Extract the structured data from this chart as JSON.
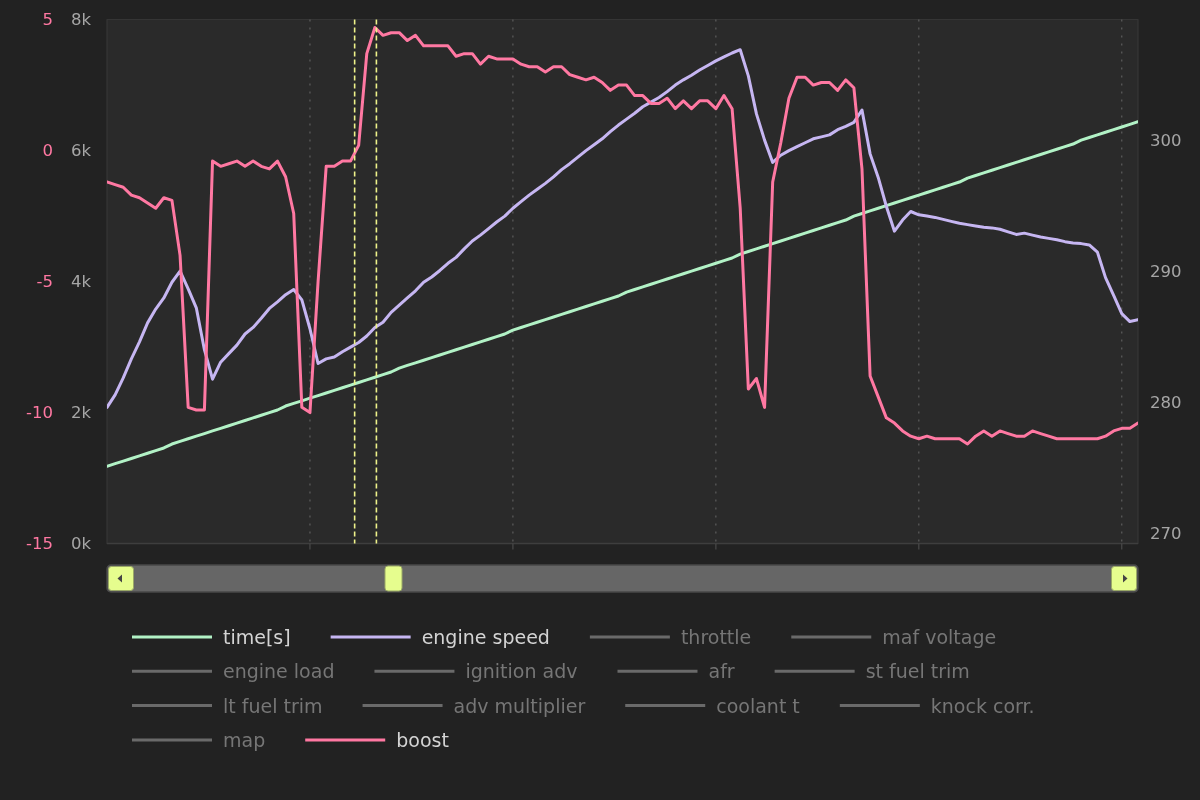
{
  "chart_data": {
    "type": "line",
    "categories": [
      null,
      null,
      null,
      null,
      null,
      null,
      null,
      null,
      null,
      null,
      null,
      null,
      null,
      null,
      null,
      null,
      null,
      null,
      null,
      null,
      null,
      null,
      null,
      null,
      null,
      null,
      null,
      null,
      null,
      null,
      null,
      null,
      null,
      null,
      null,
      null,
      null,
      null,
      null,
      null,
      null,
      null,
      null,
      null,
      null,
      null,
      null,
      null,
      null,
      null,
      null,
      null,
      null,
      null,
      null,
      null,
      null,
      null,
      null,
      null,
      null,
      null,
      null,
      null,
      null,
      null,
      null,
      null,
      null,
      null,
      null,
      null,
      null,
      null,
      null,
      null,
      null,
      null,
      null,
      null,
      null,
      null,
      null,
      null,
      null,
      null,
      null,
      null,
      null,
      null,
      null,
      null,
      null,
      null,
      null,
      null,
      null,
      null,
      null,
      null,
      null,
      null,
      null,
      null,
      null,
      null,
      null,
      null,
      null,
      null,
      null,
      null,
      null,
      null,
      null,
      null,
      null,
      null,
      null,
      null,
      null,
      null,
      null,
      null,
      null,
      null,
      null,
      null
    ],
    "ylim": [
      0,
      8000
    ],
    "yticks": [
      {
        "value": 0,
        "label": "0k"
      },
      {
        "value": 2000,
        "label": "2k"
      },
      {
        "value": 4000,
        "label": "4k"
      },
      {
        "value": 6000,
        "label": "6k"
      },
      {
        "value": 8000,
        "label": "8k"
      }
    ],
    "y2lim": [
      269.2,
      309.2
    ],
    "y2ticks": [
      270,
      280,
      290,
      300
    ],
    "y3lim": [
      -15,
      5
    ],
    "y3ticks": [
      -15,
      -10,
      -5,
      0,
      5
    ],
    "grid": "x",
    "legend": "bottom",
    "series": [
      {
        "name": "time[s]",
        "color": "#b2f2c6",
        "axis": "y2",
        "values": [
          275.1,
          275.3,
          275.5,
          275.7,
          275.9,
          276.1,
          276.3,
          276.5,
          276.8,
          277.0,
          277.2,
          277.4,
          277.6,
          277.8,
          278.0,
          278.2,
          278.4,
          278.6,
          278.8,
          279.0,
          279.2,
          279.4,
          279.7,
          279.9,
          280.1,
          280.3,
          280.5,
          280.7,
          280.9,
          281.1,
          281.3,
          281.5,
          281.7,
          281.9,
          282.1,
          282.3,
          282.6,
          282.8,
          283.0,
          283.2,
          283.4,
          283.6,
          283.8,
          284.0,
          284.2,
          284.4,
          284.6,
          284.8,
          285.0,
          285.2,
          285.5,
          285.7,
          285.9,
          286.1,
          286.3,
          286.5,
          286.7,
          286.9,
          287.1,
          287.3,
          287.5,
          287.7,
          287.9,
          288.1,
          288.4,
          288.6,
          288.8,
          289.0,
          289.2,
          289.4,
          289.6,
          289.8,
          290.0,
          290.2,
          290.4,
          290.6,
          290.8,
          291.0,
          291.3,
          291.5,
          291.7,
          291.9,
          292.1,
          292.3,
          292.5,
          292.7,
          292.9,
          293.1,
          293.3,
          293.5,
          293.7,
          293.9,
          294.2,
          294.4,
          294.6,
          294.8,
          295.0,
          295.2,
          295.4,
          295.6,
          295.8,
          296.0,
          296.2,
          296.4,
          296.6,
          296.8,
          297.1,
          297.3,
          297.5,
          297.7,
          297.9,
          298.1,
          298.3,
          298.5,
          298.7,
          298.9,
          299.1,
          299.3,
          299.5,
          299.7,
          300.0,
          300.2,
          300.4,
          300.6,
          300.8,
          301.0,
          301.2,
          301.4
        ]
      },
      {
        "name": "engine speed",
        "color": "#c6b6f2",
        "axis": "y",
        "values": [
          2080,
          2270,
          2530,
          2820,
          3080,
          3370,
          3580,
          3750,
          3990,
          4160,
          3890,
          3600,
          2960,
          2510,
          2770,
          2900,
          3030,
          3200,
          3300,
          3440,
          3590,
          3690,
          3800,
          3880,
          3720,
          3280,
          2750,
          2820,
          2850,
          2930,
          3000,
          3070,
          3170,
          3300,
          3380,
          3530,
          3640,
          3750,
          3860,
          3990,
          4070,
          4170,
          4280,
          4370,
          4500,
          4620,
          4710,
          4810,
          4910,
          5000,
          5120,
          5220,
          5320,
          5410,
          5500,
          5600,
          5710,
          5800,
          5900,
          6000,
          6090,
          6180,
          6290,
          6390,
          6480,
          6570,
          6670,
          6740,
          6810,
          6900,
          7000,
          7080,
          7150,
          7230,
          7300,
          7370,
          7430,
          7490,
          7540,
          7140,
          6560,
          6160,
          5820,
          5930,
          6000,
          6060,
          6120,
          6180,
          6210,
          6240,
          6320,
          6370,
          6430,
          6620,
          5950,
          5590,
          5150,
          4770,
          4940,
          5070,
          5020,
          5000,
          4980,
          4950,
          4920,
          4890,
          4870,
          4850,
          4830,
          4820,
          4800,
          4760,
          4720,
          4740,
          4710,
          4680,
          4660,
          4640,
          4610,
          4590,
          4580,
          4560,
          4450,
          4060,
          3790,
          3510,
          3390,
          3420
        ]
      },
      {
        "name": "throttle",
        "color": "#6a6a6a",
        "values": [
          null,
          null,
          null,
          null,
          null,
          null,
          null,
          null,
          null,
          null,
          null,
          null,
          null,
          null,
          null,
          null,
          null,
          null,
          null,
          null,
          null,
          null,
          null,
          null,
          null,
          null,
          null,
          null,
          null,
          null,
          null,
          null,
          null,
          null,
          null,
          null,
          null,
          null,
          null,
          null,
          null,
          null,
          null,
          null,
          null,
          null,
          null,
          null,
          null,
          null,
          null,
          null,
          null,
          null,
          null,
          null,
          null,
          null,
          null,
          null,
          null,
          null,
          null,
          null,
          null,
          null,
          null,
          null,
          null,
          null,
          null,
          null,
          null,
          null,
          null,
          null,
          null,
          null,
          null,
          null,
          null,
          null,
          null,
          null,
          null,
          null,
          null,
          null,
          null,
          null,
          null,
          null,
          null,
          null,
          null,
          null,
          null,
          null,
          null,
          null,
          null,
          null,
          null,
          null,
          null,
          null,
          null,
          null,
          null,
          null,
          null,
          null,
          null,
          null,
          null,
          null,
          null,
          null,
          null,
          null,
          null,
          null,
          null,
          null,
          null,
          null,
          null,
          null
        ]
      },
      {
        "name": "maf voltage",
        "color": "#6a6a6a",
        "values": [
          null,
          null,
          null,
          null,
          null,
          null,
          null,
          null,
          null,
          null,
          null,
          null,
          null,
          null,
          null,
          null,
          null,
          null,
          null,
          null,
          null,
          null,
          null,
          null,
          null,
          null,
          null,
          null,
          null,
          null,
          null,
          null,
          null,
          null,
          null,
          null,
          null,
          null,
          null,
          null,
          null,
          null,
          null,
          null,
          null,
          null,
          null,
          null,
          null,
          null,
          null,
          null,
          null,
          null,
          null,
          null,
          null,
          null,
          null,
          null,
          null,
          null,
          null,
          null,
          null,
          null,
          null,
          null,
          null,
          null,
          null,
          null,
          null,
          null,
          null,
          null,
          null,
          null,
          null,
          null,
          null,
          null,
          null,
          null,
          null,
          null,
          null,
          null,
          null,
          null,
          null,
          null,
          null,
          null,
          null,
          null,
          null,
          null,
          null,
          null,
          null,
          null,
          null,
          null,
          null,
          null,
          null,
          null,
          null,
          null,
          null,
          null,
          null,
          null,
          null,
          null,
          null,
          null,
          null,
          null,
          null,
          null,
          null,
          null,
          null,
          null,
          null,
          null
        ]
      },
      {
        "name": "engine load",
        "color": "#6a6a6a",
        "values": [
          null,
          null,
          null,
          null,
          null,
          null,
          null,
          null,
          null,
          null,
          null,
          null,
          null,
          null,
          null,
          null,
          null,
          null,
          null,
          null,
          null,
          null,
          null,
          null,
          null,
          null,
          null,
          null,
          null,
          null,
          null,
          null,
          null,
          null,
          null,
          null,
          null,
          null,
          null,
          null,
          null,
          null,
          null,
          null,
          null,
          null,
          null,
          null,
          null,
          null,
          null,
          null,
          null,
          null,
          null,
          null,
          null,
          null,
          null,
          null,
          null,
          null,
          null,
          null,
          null,
          null,
          null,
          null,
          null,
          null,
          null,
          null,
          null,
          null,
          null,
          null,
          null,
          null,
          null,
          null,
          null,
          null,
          null,
          null,
          null,
          null,
          null,
          null,
          null,
          null,
          null,
          null,
          null,
          null,
          null,
          null,
          null,
          null,
          null,
          null,
          null,
          null,
          null,
          null,
          null,
          null,
          null,
          null,
          null,
          null,
          null,
          null,
          null,
          null,
          null,
          null,
          null,
          null,
          null,
          null,
          null,
          null,
          null,
          null,
          null,
          null,
          null,
          null
        ]
      },
      {
        "name": "ignition adv",
        "color": "#6a6a6a",
        "values": [
          null,
          null,
          null,
          null,
          null,
          null,
          null,
          null,
          null,
          null,
          null,
          null,
          null,
          null,
          null,
          null,
          null,
          null,
          null,
          null,
          null,
          null,
          null,
          null,
          null,
          null,
          null,
          null,
          null,
          null,
          null,
          null,
          null,
          null,
          null,
          null,
          null,
          null,
          null,
          null,
          null,
          null,
          null,
          null,
          null,
          null,
          null,
          null,
          null,
          null,
          null,
          null,
          null,
          null,
          null,
          null,
          null,
          null,
          null,
          null,
          null,
          null,
          null,
          null,
          null,
          null,
          null,
          null,
          null,
          null,
          null,
          null,
          null,
          null,
          null,
          null,
          null,
          null,
          null,
          null,
          null,
          null,
          null,
          null,
          null,
          null,
          null,
          null,
          null,
          null,
          null,
          null,
          null,
          null,
          null,
          null,
          null,
          null,
          null,
          null,
          null,
          null,
          null,
          null,
          null,
          null,
          null,
          null,
          null,
          null,
          null,
          null,
          null,
          null,
          null,
          null,
          null,
          null,
          null,
          null,
          null,
          null,
          null,
          null,
          null,
          null,
          null,
          null
        ]
      },
      {
        "name": "afr",
        "color": "#6a6a6a",
        "values": [
          null,
          null,
          null,
          null,
          null,
          null,
          null,
          null,
          null,
          null,
          null,
          null,
          null,
          null,
          null,
          null,
          null,
          null,
          null,
          null,
          null,
          null,
          null,
          null,
          null,
          null,
          null,
          null,
          null,
          null,
          null,
          null,
          null,
          null,
          null,
          null,
          null,
          null,
          null,
          null,
          null,
          null,
          null,
          null,
          null,
          null,
          null,
          null,
          null,
          null,
          null,
          null,
          null,
          null,
          null,
          null,
          null,
          null,
          null,
          null,
          null,
          null,
          null,
          null,
          null,
          null,
          null,
          null,
          null,
          null,
          null,
          null,
          null,
          null,
          null,
          null,
          null,
          null,
          null,
          null,
          null,
          null,
          null,
          null,
          null,
          null,
          null,
          null,
          null,
          null,
          null,
          null,
          null,
          null,
          null,
          null,
          null,
          null,
          null,
          null,
          null,
          null,
          null,
          null,
          null,
          null,
          null,
          null,
          null,
          null,
          null,
          null,
          null,
          null,
          null,
          null,
          null,
          null,
          null,
          null,
          null,
          null,
          null,
          null,
          null,
          null,
          null,
          null
        ]
      },
      {
        "name": "st fuel trim",
        "color": "#6a6a6a",
        "values": [
          null,
          null,
          null,
          null,
          null,
          null,
          null,
          null,
          null,
          null,
          null,
          null,
          null,
          null,
          null,
          null,
          null,
          null,
          null,
          null,
          null,
          null,
          null,
          null,
          null,
          null,
          null,
          null,
          null,
          null,
          null,
          null,
          null,
          null,
          null,
          null,
          null,
          null,
          null,
          null,
          null,
          null,
          null,
          null,
          null,
          null,
          null,
          null,
          null,
          null,
          null,
          null,
          null,
          null,
          null,
          null,
          null,
          null,
          null,
          null,
          null,
          null,
          null,
          null,
          null,
          null,
          null,
          null,
          null,
          null,
          null,
          null,
          null,
          null,
          null,
          null,
          null,
          null,
          null,
          null,
          null,
          null,
          null,
          null,
          null,
          null,
          null,
          null,
          null,
          null,
          null,
          null,
          null,
          null,
          null,
          null,
          null,
          null,
          null,
          null,
          null,
          null,
          null,
          null,
          null,
          null,
          null,
          null,
          null,
          null,
          null,
          null,
          null,
          null,
          null,
          null,
          null,
          null,
          null,
          null,
          null,
          null,
          null,
          null,
          null,
          null,
          null,
          null
        ]
      },
      {
        "name": "lt fuel trim",
        "color": "#6a6a6a",
        "values": [
          null,
          null,
          null,
          null,
          null,
          null,
          null,
          null,
          null,
          null,
          null,
          null,
          null,
          null,
          null,
          null,
          null,
          null,
          null,
          null,
          null,
          null,
          null,
          null,
          null,
          null,
          null,
          null,
          null,
          null,
          null,
          null,
          null,
          null,
          null,
          null,
          null,
          null,
          null,
          null,
          null,
          null,
          null,
          null,
          null,
          null,
          null,
          null,
          null,
          null,
          null,
          null,
          null,
          null,
          null,
          null,
          null,
          null,
          null,
          null,
          null,
          null,
          null,
          null,
          null,
          null,
          null,
          null,
          null,
          null,
          null,
          null,
          null,
          null,
          null,
          null,
          null,
          null,
          null,
          null,
          null,
          null,
          null,
          null,
          null,
          null,
          null,
          null,
          null,
          null,
          null,
          null,
          null,
          null,
          null,
          null,
          null,
          null,
          null,
          null,
          null,
          null,
          null,
          null,
          null,
          null,
          null,
          null,
          null,
          null,
          null,
          null,
          null,
          null,
          null,
          null,
          null,
          null,
          null,
          null,
          null,
          null,
          null,
          null,
          null,
          null,
          null,
          null
        ]
      },
      {
        "name": "adv multiplier",
        "color": "#6a6a6a",
        "values": [
          null,
          null,
          null,
          null,
          null,
          null,
          null,
          null,
          null,
          null,
          null,
          null,
          null,
          null,
          null,
          null,
          null,
          null,
          null,
          null,
          null,
          null,
          null,
          null,
          null,
          null,
          null,
          null,
          null,
          null,
          null,
          null,
          null,
          null,
          null,
          null,
          null,
          null,
          null,
          null,
          null,
          null,
          null,
          null,
          null,
          null,
          null,
          null,
          null,
          null,
          null,
          null,
          null,
          null,
          null,
          null,
          null,
          null,
          null,
          null,
          null,
          null,
          null,
          null,
          null,
          null,
          null,
          null,
          null,
          null,
          null,
          null,
          null,
          null,
          null,
          null,
          null,
          null,
          null,
          null,
          null,
          null,
          null,
          null,
          null,
          null,
          null,
          null,
          null,
          null,
          null,
          null,
          null,
          null,
          null,
          null,
          null,
          null,
          null,
          null,
          null,
          null,
          null,
          null,
          null,
          null,
          null,
          null,
          null,
          null,
          null,
          null,
          null,
          null,
          null,
          null,
          null,
          null,
          null,
          null,
          null,
          null,
          null,
          null,
          null,
          null,
          null,
          null
        ]
      },
      {
        "name": "coolant t",
        "color": "#6a6a6a",
        "values": [
          null,
          null,
          null,
          null,
          null,
          null,
          null,
          null,
          null,
          null,
          null,
          null,
          null,
          null,
          null,
          null,
          null,
          null,
          null,
          null,
          null,
          null,
          null,
          null,
          null,
          null,
          null,
          null,
          null,
          null,
          null,
          null,
          null,
          null,
          null,
          null,
          null,
          null,
          null,
          null,
          null,
          null,
          null,
          null,
          null,
          null,
          null,
          null,
          null,
          null,
          null,
          null,
          null,
          null,
          null,
          null,
          null,
          null,
          null,
          null,
          null,
          null,
          null,
          null,
          null,
          null,
          null,
          null,
          null,
          null,
          null,
          null,
          null,
          null,
          null,
          null,
          null,
          null,
          null,
          null,
          null,
          null,
          null,
          null,
          null,
          null,
          null,
          null,
          null,
          null,
          null,
          null,
          null,
          null,
          null,
          null,
          null,
          null,
          null,
          null,
          null,
          null,
          null,
          null,
          null,
          null,
          null,
          null,
          null,
          null,
          null,
          null,
          null,
          null,
          null,
          null,
          null,
          null,
          null,
          null,
          null,
          null,
          null,
          null,
          null,
          null,
          null,
          null
        ]
      },
      {
        "name": "knock corr.",
        "color": "#6a6a6a",
        "values": [
          null,
          null,
          null,
          null,
          null,
          null,
          null,
          null,
          null,
          null,
          null,
          null,
          null,
          null,
          null,
          null,
          null,
          null,
          null,
          null,
          null,
          null,
          null,
          null,
          null,
          null,
          null,
          null,
          null,
          null,
          null,
          null,
          null,
          null,
          null,
          null,
          null,
          null,
          null,
          null,
          null,
          null,
          null,
          null,
          null,
          null,
          null,
          null,
          null,
          null,
          null,
          null,
          null,
          null,
          null,
          null,
          null,
          null,
          null,
          null,
          null,
          null,
          null,
          null,
          null,
          null,
          null,
          null,
          null,
          null,
          null,
          null,
          null,
          null,
          null,
          null,
          null,
          null,
          null,
          null,
          null,
          null,
          null,
          null,
          null,
          null,
          null,
          null,
          null,
          null,
          null,
          null,
          null,
          null,
          null,
          null,
          null,
          null,
          null,
          null,
          null,
          null,
          null,
          null,
          null,
          null,
          null,
          null,
          null,
          null,
          null,
          null,
          null,
          null,
          null,
          null,
          null,
          null,
          null,
          null,
          null,
          null,
          null,
          null,
          null,
          null,
          null,
          null
        ]
      },
      {
        "name": "map",
        "color": "#6a6a6a",
        "values": [
          null,
          null,
          null,
          null,
          null,
          null,
          null,
          null,
          null,
          null,
          null,
          null,
          null,
          null,
          null,
          null,
          null,
          null,
          null,
          null,
          null,
          null,
          null,
          null,
          null,
          null,
          null,
          null,
          null,
          null,
          null,
          null,
          null,
          null,
          null,
          null,
          null,
          null,
          null,
          null,
          null,
          null,
          null,
          null,
          null,
          null,
          null,
          null,
          null,
          null,
          null,
          null,
          null,
          null,
          null,
          null,
          null,
          null,
          null,
          null,
          null,
          null,
          null,
          null,
          null,
          null,
          null,
          null,
          null,
          null,
          null,
          null,
          null,
          null,
          null,
          null,
          null,
          null,
          null,
          null,
          null,
          null,
          null,
          null,
          null,
          null,
          null,
          null,
          null,
          null,
          null,
          null,
          null,
          null,
          null,
          null,
          null,
          null,
          null,
          null,
          null,
          null,
          null,
          null,
          null,
          null,
          null,
          null,
          null,
          null,
          null,
          null,
          null,
          null,
          null,
          null,
          null,
          null,
          null,
          null,
          null,
          null,
          null,
          null,
          null,
          null,
          null,
          null
        ]
      },
      {
        "name": "boost",
        "color": "#ff78a2",
        "axis": "y3",
        "values": [
          -1.2,
          -1.3,
          -1.4,
          -1.7,
          -1.8,
          -2.0,
          -2.2,
          -1.8,
          -1.9,
          -4.0,
          -9.8,
          -9.9,
          -9.9,
          -0.4,
          -0.6,
          -0.5,
          -0.4,
          -0.6,
          -0.4,
          -0.6,
          -0.7,
          -0.4,
          -1.0,
          -2.4,
          -9.8,
          -10.0,
          -5.0,
          -0.6,
          -0.6,
          -0.4,
          -0.4,
          0.2,
          3.7,
          4.7,
          4.4,
          4.5,
          4.5,
          4.2,
          4.4,
          4.0,
          4.0,
          4.0,
          4.0,
          3.6,
          3.7,
          3.7,
          3.3,
          3.6,
          3.5,
          3.5,
          3.5,
          3.3,
          3.2,
          3.2,
          3.0,
          3.2,
          3.2,
          2.9,
          2.8,
          2.7,
          2.8,
          2.6,
          2.3,
          2.5,
          2.5,
          2.1,
          2.1,
          1.8,
          1.8,
          2.0,
          1.6,
          1.9,
          1.6,
          1.9,
          1.9,
          1.6,
          2.1,
          1.6,
          -2.2,
          -9.1,
          -8.7,
          -9.8,
          -1.2,
          0.3,
          2.0,
          2.8,
          2.8,
          2.5,
          2.6,
          2.6,
          2.3,
          2.7,
          2.4,
          -0.7,
          -8.6,
          -9.4,
          -10.2,
          -10.4,
          -10.7,
          -10.9,
          -11.0,
          -10.9,
          -11.0,
          -11.0,
          -11.0,
          -11.0,
          -11.2,
          -10.9,
          -10.7,
          -10.9,
          -10.7,
          -10.8,
          -10.9,
          -10.9,
          -10.7,
          -10.8,
          -10.9,
          -11.0,
          -11.0,
          -11.0,
          -11.0,
          -11.0,
          -11.0,
          -10.9,
          -10.7,
          -10.6,
          -10.6,
          -10.4
        ]
      }
    ]
  }
}
